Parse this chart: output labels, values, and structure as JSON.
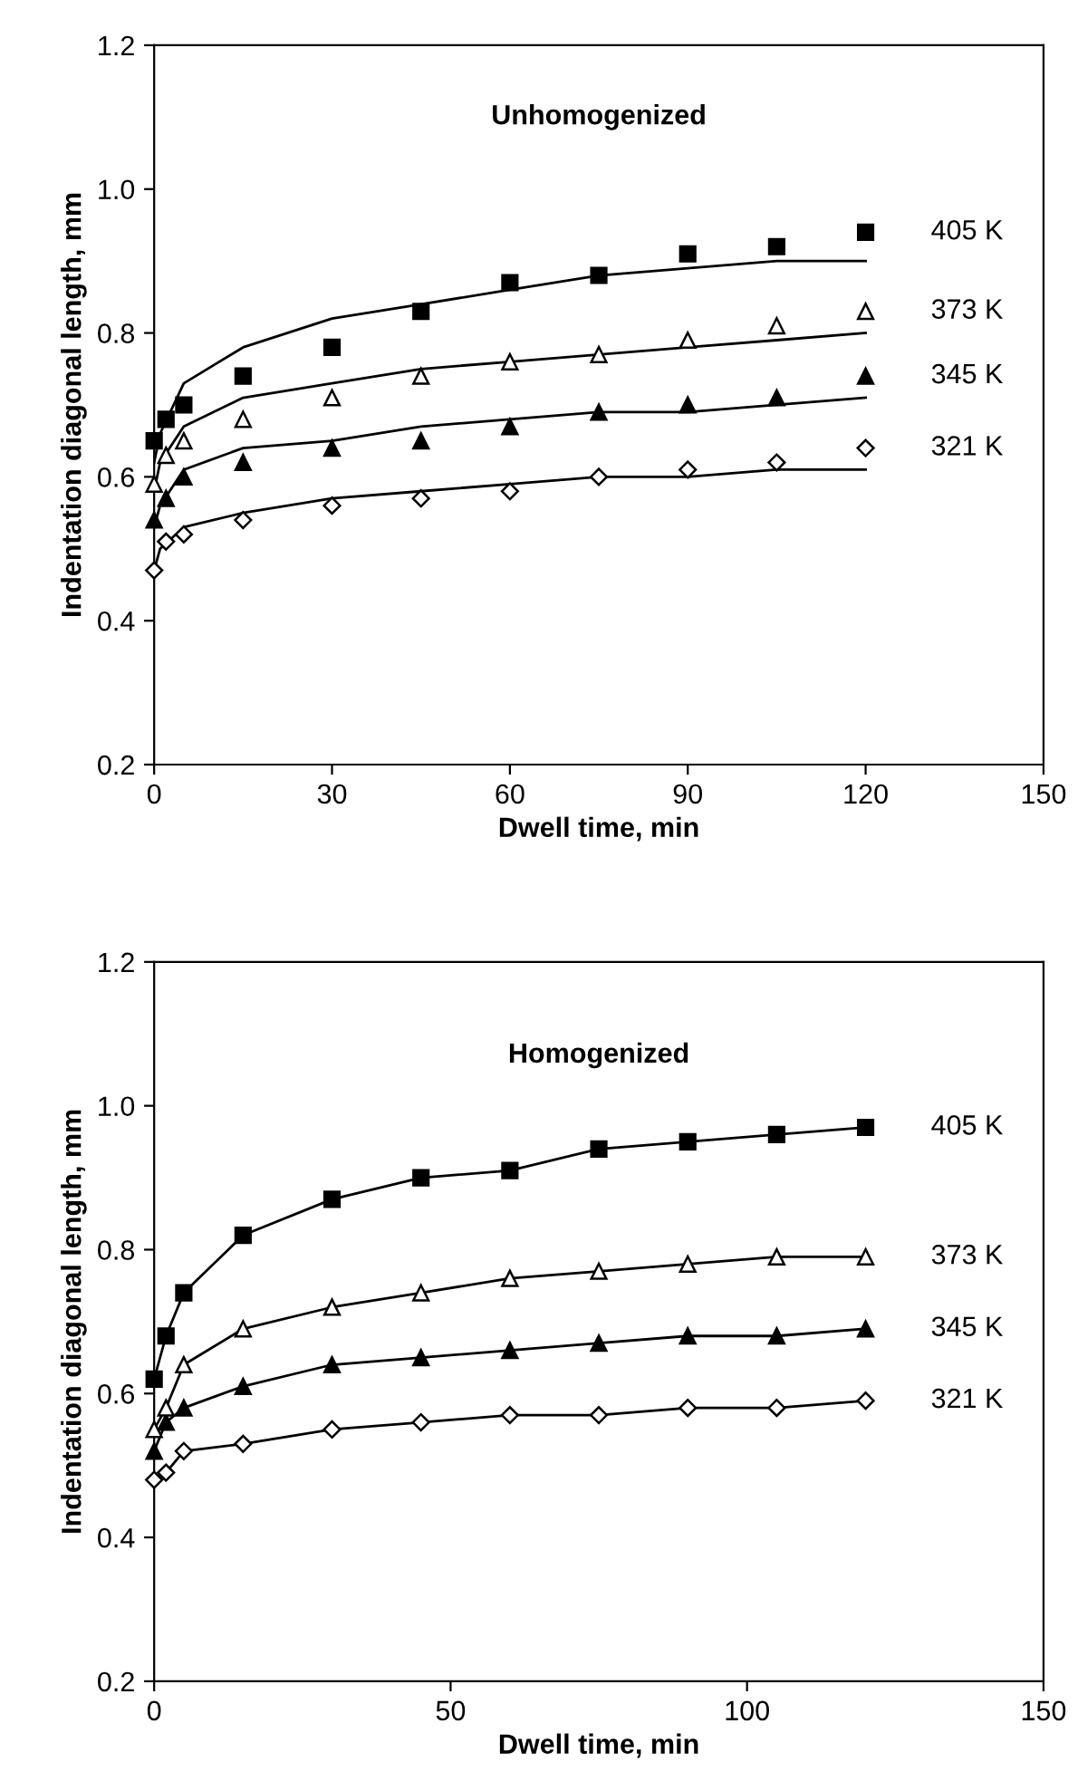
{
  "chart_data": [
    {
      "type": "line",
      "title": "Unhomogenized",
      "xlabel": "Dwell time, min",
      "ylabel": "Indentation diagonal length, mm",
      "xlim": [
        0,
        150
      ],
      "xticks": [
        0,
        30,
        60,
        90,
        120,
        150
      ],
      "ylim": [
        0.2,
        1.2
      ],
      "yticks": [
        {
          "value": 0.2,
          "label": "0.2"
        },
        {
          "value": 0.4,
          "label": "0.4"
        },
        {
          "value": 0.6,
          "label": "0.6"
        },
        {
          "value": 0.8,
          "label": "0.8"
        },
        {
          "value": 1.0,
          "label": "1.0"
        },
        {
          "value": 1.2,
          "label": "1.2"
        }
      ],
      "grid": false,
      "legend": false,
      "series": [
        {
          "name": "405 K",
          "type": "scatter",
          "marker": "square",
          "color": "#000000",
          "x": [
            0,
            2,
            5,
            15,
            30,
            45,
            60,
            75,
            90,
            105,
            120
          ],
          "values": [
            0.65,
            0.68,
            0.7,
            0.74,
            0.78,
            0.83,
            0.87,
            0.88,
            0.91,
            0.92,
            0.94
          ]
        },
        {
          "name": "373 K",
          "type": "scatter",
          "marker": "triangle",
          "color": "#ffffff",
          "x": [
            0,
            2,
            5,
            15,
            30,
            45,
            60,
            75,
            90,
            105,
            120
          ],
          "values": [
            0.59,
            0.63,
            0.65,
            0.68,
            0.71,
            0.74,
            0.76,
            0.77,
            0.79,
            0.81,
            0.83
          ]
        },
        {
          "name": "345 K",
          "type": "scatter",
          "marker": "triangle",
          "color": "#000000",
          "x": [
            0,
            2,
            5,
            15,
            30,
            45,
            60,
            75,
            90,
            105,
            120
          ],
          "values": [
            0.54,
            0.57,
            0.6,
            0.62,
            0.64,
            0.65,
            0.67,
            0.69,
            0.7,
            0.71,
            0.74
          ]
        },
        {
          "name": "321 K",
          "type": "scatter",
          "marker": "diamond",
          "color": "#ffffff",
          "x": [
            0,
            2,
            5,
            15,
            30,
            45,
            60,
            75,
            90,
            105,
            120
          ],
          "values": [
            0.47,
            0.51,
            0.52,
            0.54,
            0.56,
            0.57,
            0.58,
            0.6,
            0.61,
            0.62,
            0.64
          ]
        },
        {
          "type": "line",
          "line_style": "solid",
          "color": "#000000",
          "x": [
            0,
            1,
            5,
            15,
            30,
            45,
            60,
            75,
            90,
            105,
            120
          ],
          "values": [
            0.62,
            0.66,
            0.73,
            0.78,
            0.82,
            0.84,
            0.86,
            0.88,
            0.89,
            0.9,
            0.9
          ]
        },
        {
          "type": "line",
          "line_style": "solid",
          "color": "#000000",
          "x": [
            0,
            1,
            5,
            15,
            30,
            45,
            60,
            75,
            90,
            105,
            120
          ],
          "values": [
            0.58,
            0.62,
            0.67,
            0.71,
            0.73,
            0.75,
            0.76,
            0.77,
            0.78,
            0.79,
            0.8
          ]
        },
        {
          "type": "line",
          "line_style": "solid",
          "color": "#000000",
          "x": [
            0,
            1,
            5,
            15,
            30,
            45,
            60,
            75,
            90,
            105,
            120
          ],
          "values": [
            0.53,
            0.56,
            0.61,
            0.64,
            0.65,
            0.67,
            0.68,
            0.69,
            0.69,
            0.7,
            0.71
          ]
        },
        {
          "type": "line",
          "line_style": "solid",
          "color": "#000000",
          "x": [
            0,
            1,
            5,
            15,
            30,
            45,
            60,
            75,
            90,
            105,
            120
          ],
          "values": [
            0.47,
            0.5,
            0.53,
            0.55,
            0.57,
            0.58,
            0.59,
            0.6,
            0.6,
            0.61,
            0.61
          ]
        }
      ]
    },
    {
      "type": "line",
      "title": "Homogenized",
      "xlabel": "Dwell time, min",
      "ylabel": "Indentation diagonal length, mm",
      "xlim": [
        0,
        150
      ],
      "xticks": [
        0,
        50,
        100,
        150
      ],
      "ylim": [
        0.2,
        1.2
      ],
      "yticks": [
        {
          "value": 0.2,
          "label": "0.2"
        },
        {
          "value": 0.4,
          "label": "0.4"
        },
        {
          "value": 0.6,
          "label": "0.6"
        },
        {
          "value": 0.8,
          "label": "0.8"
        },
        {
          "value": 1.0,
          "label": "1.0"
        },
        {
          "value": 1.2,
          "label": "1.2"
        }
      ],
      "grid": false,
      "legend": false,
      "series": [
        {
          "name": "405 K",
          "type": "line",
          "line_style": "solid",
          "marker": "square",
          "color": "#000000",
          "x": [
            0,
            2,
            5,
            15,
            30,
            45,
            60,
            75,
            90,
            105,
            120
          ],
          "values": [
            0.62,
            0.68,
            0.74,
            0.82,
            0.87,
            0.9,
            0.91,
            0.94,
            0.95,
            0.96,
            0.97
          ]
        },
        {
          "name": "373 K",
          "type": "line",
          "line_style": "solid",
          "marker": "triangle",
          "color": "#ffffff",
          "x": [
            0,
            2,
            5,
            15,
            30,
            45,
            60,
            75,
            90,
            105,
            120
          ],
          "values": [
            0.55,
            0.58,
            0.64,
            0.69,
            0.72,
            0.74,
            0.76,
            0.77,
            0.78,
            0.79,
            0.79
          ]
        },
        {
          "name": "345 K",
          "type": "line",
          "line_style": "solid",
          "marker": "triangle",
          "color": "#000000",
          "x": [
            0,
            2,
            5,
            15,
            30,
            45,
            60,
            75,
            90,
            105,
            120
          ],
          "values": [
            0.52,
            0.56,
            0.58,
            0.61,
            0.64,
            0.65,
            0.66,
            0.67,
            0.68,
            0.68,
            0.69
          ]
        },
        {
          "name": "321 K",
          "type": "line",
          "line_style": "solid",
          "marker": "diamond",
          "color": "#ffffff",
          "x": [
            0,
            2,
            5,
            15,
            30,
            45,
            60,
            75,
            90,
            105,
            120
          ],
          "values": [
            0.48,
            0.49,
            0.52,
            0.53,
            0.55,
            0.56,
            0.57,
            0.57,
            0.58,
            0.58,
            0.59
          ]
        }
      ]
    }
  ]
}
